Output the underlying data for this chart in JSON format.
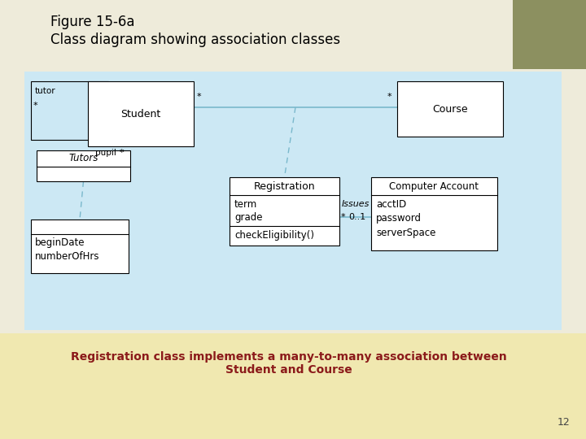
{
  "title_line1": "Figure 15-6a",
  "title_line2": "Class diagram showing association classes",
  "caption": "Registration class implements a many-to-many association between\nStudent and Course",
  "page_number": "12",
  "bg_top_color": "#eeebda",
  "bg_bottom_color": "#f5f0d8",
  "bg_right_color": "#8c9060",
  "diagram_bg": "#cce8f4",
  "box_fill": "#ffffff",
  "title_color": "#000000",
  "caption_color": "#8b1a1a",
  "line_color": "#000000",
  "assoc_line_color": "#7ab8cc",
  "dashed_line_color": "#7ab8cc"
}
